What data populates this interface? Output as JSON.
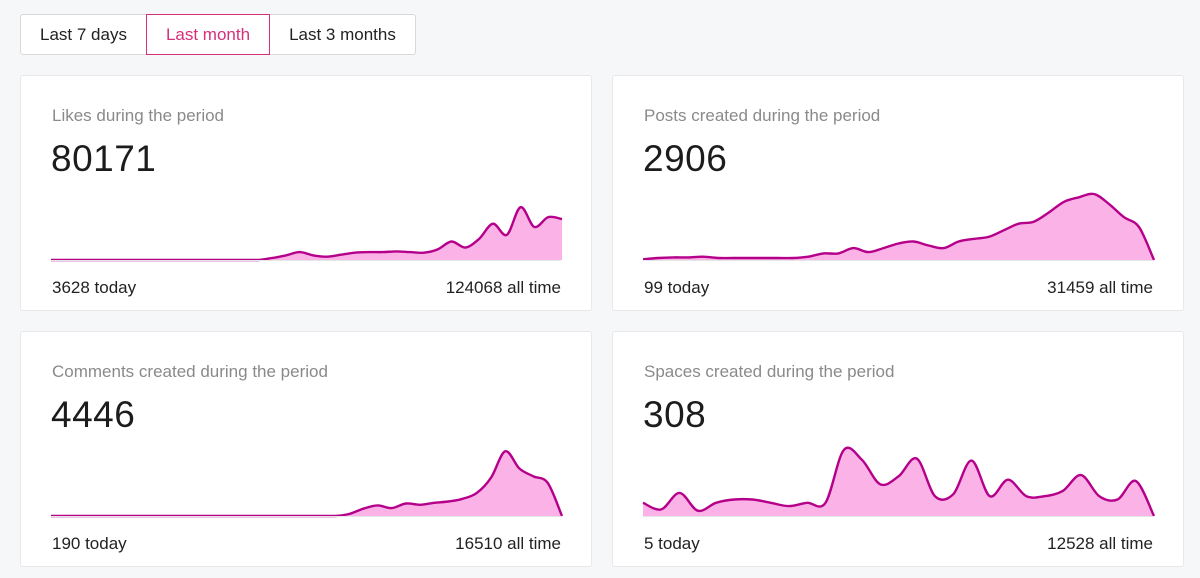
{
  "period_tabs": {
    "items": [
      "Last 7 days",
      "Last month",
      "Last 3 months"
    ],
    "selected": "Last month"
  },
  "colors": {
    "accent": "#d6307a",
    "spark_line": "#b5008a",
    "spark_fill": "#fbb3e7"
  },
  "cards": [
    {
      "title": "Likes during the period",
      "value": "80171",
      "today": "3628 today",
      "all_time": "124068 all time",
      "series": [
        0,
        0,
        0,
        0,
        0,
        0,
        0,
        0,
        0,
        0,
        0,
        0,
        0,
        0,
        0,
        0,
        0.03,
        0.07,
        0.12,
        0.07,
        0.05,
        0.08,
        0.11,
        0.12,
        0.12,
        0.13,
        0.12,
        0.11,
        0.16,
        0.28,
        0.19,
        0.32,
        0.55,
        0.38,
        0.8,
        0.5,
        0.65,
        0.62
      ]
    },
    {
      "title": "Posts created during the period",
      "value": "2906",
      "today": "99 today",
      "all_time": "31459 all time",
      "series": [
        0.01,
        0.03,
        0.04,
        0.04,
        0.05,
        0.03,
        0.03,
        0.03,
        0.03,
        0.03,
        0.03,
        0.05,
        0.1,
        0.1,
        0.18,
        0.12,
        0.18,
        0.25,
        0.28,
        0.22,
        0.18,
        0.28,
        0.32,
        0.35,
        0.45,
        0.55,
        0.58,
        0.72,
        0.88,
        0.95,
        1.0,
        0.85,
        0.65,
        0.5,
        0.0
      ]
    },
    {
      "title": "Comments created during the period",
      "value": "4446",
      "today": "190 today",
      "all_time": "16510 all time",
      "series": [
        0,
        0,
        0,
        0,
        0,
        0,
        0,
        0,
        0,
        0,
        0,
        0,
        0,
        0,
        0,
        0,
        0,
        0,
        0,
        0,
        0,
        0.03,
        0.11,
        0.16,
        0.12,
        0.19,
        0.17,
        0.2,
        0.22,
        0.26,
        0.35,
        0.58,
        0.98,
        0.72,
        0.6,
        0.5,
        0.0
      ]
    },
    {
      "title": "Spaces created during the period",
      "value": "308",
      "today": "5 today",
      "all_time": "12528 all time",
      "series": [
        0.2,
        0.1,
        0.35,
        0.08,
        0.2,
        0.25,
        0.25,
        0.2,
        0.15,
        0.2,
        0.2,
        1.0,
        0.85,
        0.48,
        0.6,
        0.87,
        0.3,
        0.33,
        0.84,
        0.3,
        0.55,
        0.3,
        0.3,
        0.38,
        0.62,
        0.3,
        0.25,
        0.53,
        0.0
      ]
    }
  ]
}
